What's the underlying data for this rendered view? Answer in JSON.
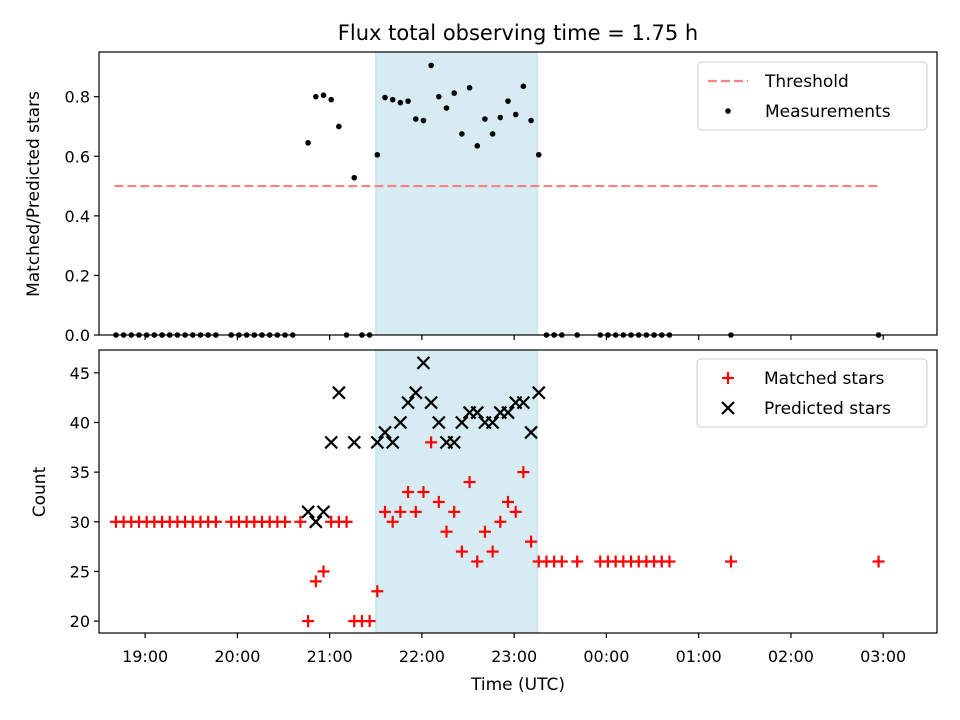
{
  "chart_data": {
    "type": "scatter",
    "title": "Flux total observing time = 1.75 h",
    "x_unit": "hours (UTC)",
    "xlabel": "Time (UTC)",
    "xlim": [
      "18:30",
      "03:35"
    ],
    "x_ticks": [
      "19:00",
      "20:00",
      "21:00",
      "22:00",
      "23:00",
      "00:00",
      "01:00",
      "02:00",
      "03:00"
    ],
    "highlight_span": [
      "21:30",
      "23:15"
    ],
    "highlight_color": "#add8e6",
    "panels": [
      {
        "ylabel": "Matched/Predicted stars",
        "ylim": [
          0,
          0.95
        ],
        "y_ticks": [
          0.0,
          0.2,
          0.4,
          0.6,
          0.8
        ],
        "legend": {
          "placement": "top-right",
          "entries": [
            "Threshold",
            "Measurements"
          ]
        },
        "threshold": {
          "name": "Threshold",
          "y": 0.5,
          "x_range": [
            "18:40",
            "02:58"
          ],
          "color": "#ff8080",
          "style": "dashed"
        },
        "series": [
          {
            "name": "Measurements",
            "marker": "dot",
            "color": "#000000",
            "x": [
              "18:41",
              "18:46",
              "18:51",
              "18:56",
              "19:01",
              "19:06",
              "19:11",
              "19:16",
              "19:21",
              "19:26",
              "19:31",
              "19:36",
              "19:41",
              "19:46",
              "19:56",
              "20:01",
              "20:06",
              "20:11",
              "20:16",
              "20:21",
              "20:26",
              "20:31",
              "20:36",
              "20:46",
              "20:51",
              "20:56",
              "21:01",
              "21:06",
              "21:11",
              "21:16",
              "21:21",
              "21:26",
              "21:31",
              "21:36",
              "21:41",
              "21:46",
              "21:51",
              "21:56",
              "22:01",
              "22:06",
              "22:11",
              "22:16",
              "22:21",
              "22:26",
              "22:31",
              "22:36",
              "22:41",
              "22:46",
              "22:51",
              "22:56",
              "23:01",
              "23:06",
              "23:11",
              "23:16",
              "23:21",
              "23:26",
              "23:31",
              "23:41",
              "23:56",
              "24:01",
              "24:06",
              "24:11",
              "24:16",
              "24:21",
              "24:26",
              "24:31",
              "24:36",
              "24:41",
              "25:21",
              "26:57"
            ],
            "y": [
              0,
              0,
              0,
              0,
              0,
              0,
              0,
              0,
              0,
              0,
              0,
              0,
              0,
              0,
              0,
              0,
              0,
              0,
              0,
              0,
              0,
              0,
              0,
              0.645,
              0.8,
              0.805,
              0.79,
              0.7,
              0,
              0.528,
              0,
              0,
              0.605,
              0.797,
              0.79,
              0.78,
              0.785,
              0.725,
              0.72,
              0.905,
              0.8,
              0.762,
              0.812,
              0.675,
              0.83,
              0.635,
              0.725,
              0.675,
              0.73,
              0.785,
              0.74,
              0.835,
              0.72,
              0.605,
              0,
              0,
              0,
              0,
              0,
              0,
              0,
              0,
              0,
              0,
              0,
              0,
              0,
              0,
              0,
              0
            ]
          }
        ]
      },
      {
        "ylabel": "Count",
        "ylim": [
          18.8,
          47.3
        ],
        "y_ticks": [
          20,
          25,
          30,
          35,
          40,
          45
        ],
        "legend": {
          "placement": "top-right",
          "entries": [
            "Matched stars",
            "Predicted stars"
          ]
        },
        "series": [
          {
            "name": "Matched stars",
            "marker": "plus",
            "color": "#ff0000",
            "x": [
              "18:41",
              "18:46",
              "18:51",
              "18:56",
              "19:01",
              "19:06",
              "19:11",
              "19:16",
              "19:21",
              "19:26",
              "19:31",
              "19:36",
              "19:41",
              "19:46",
              "19:56",
              "20:01",
              "20:06",
              "20:11",
              "20:16",
              "20:21",
              "20:26",
              "20:31",
              "20:41",
              "20:46",
              "20:51",
              "20:56",
              "21:01",
              "21:06",
              "21:11",
              "21:16",
              "21:21",
              "21:26",
              "21:31",
              "21:36",
              "21:41",
              "21:46",
              "21:51",
              "21:56",
              "22:01",
              "22:06",
              "22:11",
              "22:16",
              "22:21",
              "22:26",
              "22:31",
              "22:36",
              "22:41",
              "22:46",
              "22:51",
              "22:56",
              "23:01",
              "23:06",
              "23:11",
              "23:16",
              "23:21",
              "23:26",
              "23:31",
              "23:41",
              "23:56",
              "24:01",
              "24:06",
              "24:11",
              "24:16",
              "24:21",
              "24:26",
              "24:31",
              "24:36",
              "24:41",
              "25:21",
              "26:57"
            ],
            "y": [
              30,
              30,
              30,
              30,
              30,
              30,
              30,
              30,
              30,
              30,
              30,
              30,
              30,
              30,
              30,
              30,
              30,
              30,
              30,
              30,
              30,
              30,
              30,
              20,
              24,
              25,
              30,
              30,
              30,
              20,
              20,
              20,
              23,
              31,
              30,
              31,
              33,
              31,
              33,
              38,
              32,
              29,
              31,
              27,
              34,
              26,
              29,
              27,
              30,
              32,
              31,
              35,
              28,
              26,
              26,
              26,
              26,
              26,
              26,
              26,
              26,
              26,
              26,
              26,
              26,
              26,
              26,
              26,
              26,
              26
            ]
          },
          {
            "name": "Predicted stars",
            "marker": "x",
            "color": "#000000",
            "x": [
              "20:46",
              "20:51",
              "20:56",
              "21:01",
              "21:06",
              "21:16",
              "21:31",
              "21:36",
              "21:41",
              "21:46",
              "21:51",
              "21:56",
              "22:01",
              "22:06",
              "22:11",
              "22:16",
              "22:21",
              "22:26",
              "22:31",
              "22:36",
              "22:41",
              "22:46",
              "22:51",
              "22:56",
              "23:01",
              "23:06",
              "23:11",
              "23:16"
            ],
            "y": [
              31,
              30,
              31,
              38,
              43,
              38,
              38,
              39,
              38,
              40,
              42,
              43,
              46,
              42,
              40,
              38,
              38,
              40,
              41,
              41,
              40,
              40,
              41,
              41,
              42,
              42,
              39,
              43
            ]
          }
        ]
      }
    ]
  }
}
